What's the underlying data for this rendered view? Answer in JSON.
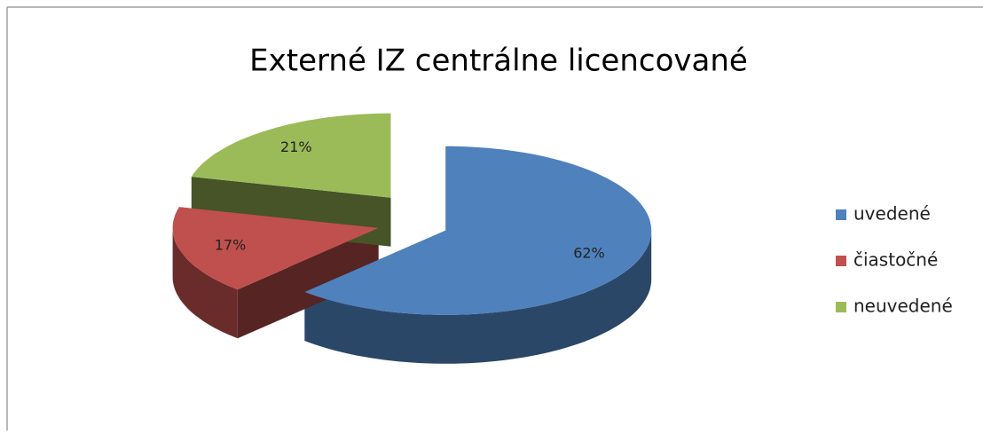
{
  "chart_data": {
    "type": "pie",
    "title": "Externé IZ centrálne licencované",
    "categories": [
      "uvedené",
      "čiastočné",
      "neuvedené"
    ],
    "values": [
      62,
      17,
      21
    ],
    "value_labels": [
      "62%",
      "17%",
      "21%"
    ],
    "colors": [
      "#4f81bd",
      "#c0504d",
      "#9bbb59"
    ],
    "legend": "right"
  }
}
